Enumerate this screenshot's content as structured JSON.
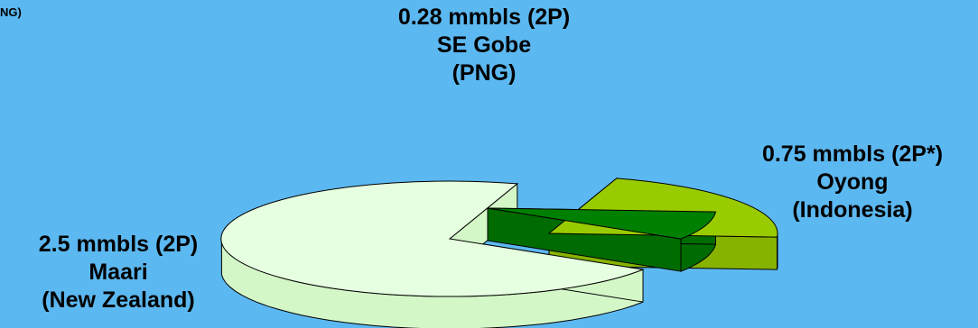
{
  "chart_data": {
    "type": "pie",
    "style": "3d-exploded",
    "title": "",
    "series": [
      {
        "name": "",
        "slices": [
          {
            "value": 2.5,
            "label_lines": [
              "2.5 mmbls (2P)",
              "Maari",
              "(New Zealand)"
            ],
            "color_top": "#e6ffe0",
            "color_side": "#d4f7c8"
          },
          {
            "value": 0.75,
            "label_lines": [
              "0.75 mmbls (2P*)",
              "Oyong",
              "(Indonesia)"
            ],
            "color_top": "#99cc00",
            "color_side": "#86b300"
          },
          {
            "value": 0.28,
            "label_lines": [
              "0.28 mmbls (2P)",
              "SE Gobe",
              "(PNG)"
            ],
            "color_top": "#008000",
            "color_side": "#006b00"
          }
        ]
      }
    ],
    "background": "#5cb8f0",
    "legend": "none"
  },
  "corner_fragment": "NG)"
}
